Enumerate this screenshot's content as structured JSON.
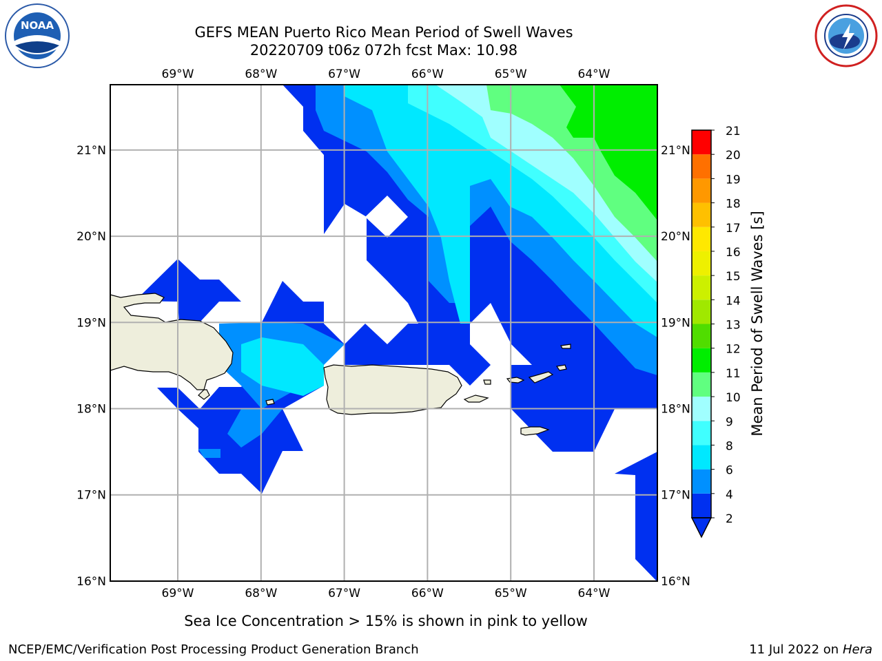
{
  "header": {
    "title_line1": "GEFS MEAN Puerto Rico Mean Period of Swell Waves",
    "title_line2": "20220709 t06z 072h fcst   Max: 10.98"
  },
  "logos": {
    "left": {
      "icon": "noaa-logo",
      "text": "NOAA"
    },
    "right": {
      "icon": "national-weather-service-logo",
      "text": "NATIONAL WEATHER SERVICE"
    }
  },
  "map": {
    "lon_ticks": [
      "69°W",
      "68°W",
      "67°W",
      "66°W",
      "65°W",
      "64°W"
    ],
    "lat_ticks": [
      "21°N",
      "20°N",
      "19°N",
      "18°N",
      "17°N",
      "16°N"
    ],
    "colors": {
      "land": "#eeeedc",
      "ocean_missing": "#ffffff",
      "gridline": "#b0b0b0",
      "coastline": "#000000"
    }
  },
  "colorbar": {
    "label": "Mean Period of Swell Waves [s]",
    "ticks": [
      "2",
      "4",
      "6",
      "8",
      "9",
      "10",
      "11",
      "12",
      "13",
      "14",
      "15",
      "16",
      "17",
      "18",
      "19",
      "20",
      "21"
    ],
    "colors": [
      "#0030f0",
      "#0090ff",
      "#00e8ff",
      "#40ffff",
      "#a0ffff",
      "#60ff80",
      "#00ee00",
      "#50dd00",
      "#a0e800",
      "#ccf000",
      "#eef000",
      "#ffe800",
      "#ffc000",
      "#ff9800",
      "#ff7000",
      "#ff4000",
      "#ff0000"
    ]
  },
  "footer": {
    "note": "Sea Ice Concentration > 15% is shown in pink to yellow",
    "credit": "NCEP/EMC/Verification Post Processing Product Generation Branch",
    "date": "11 Jul 2022 on ",
    "machine": "Hera"
  }
}
